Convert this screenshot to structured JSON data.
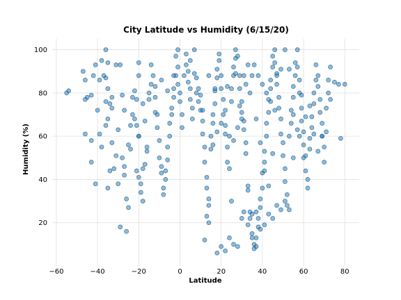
{
  "chart_data": {
    "type": "scatter",
    "title": "City Latitude vs Humidity (6/15/20)",
    "xlabel": "Latitude",
    "ylabel": "Humidity (%)",
    "xlim": [
      -62,
      87
    ],
    "ylim": [
      0,
      105
    ],
    "xticks": [
      -60,
      -40,
      -20,
      0,
      20,
      40,
      60,
      80
    ],
    "yticks": [
      20,
      40,
      60,
      80,
      100
    ],
    "grid": true,
    "marker_color": "#1f77b4",
    "points": [
      [
        -55,
        80
      ],
      [
        -54,
        81
      ],
      [
        -47,
        90
      ],
      [
        -46,
        86
      ],
      [
        -45,
        78
      ],
      [
        -46,
        77
      ],
      [
        -43,
        79
      ],
      [
        -46,
        61
      ],
      [
        -43,
        58
      ],
      [
        -41,
        38
      ],
      [
        -43,
        48
      ],
      [
        -42,
        88
      ],
      [
        -41,
        93
      ],
      [
        -40,
        72
      ],
      [
        -39,
        86
      ],
      [
        -38,
        95
      ],
      [
        -39,
        61
      ],
      [
        -38,
        55
      ],
      [
        -36,
        100
      ],
      [
        -35,
        94
      ],
      [
        -36,
        87
      ],
      [
        -37,
        88
      ],
      [
        -35,
        82
      ],
      [
        -36,
        76
      ],
      [
        -35,
        68
      ],
      [
        -36,
        65
      ],
      [
        -33,
        57
      ],
      [
        -34,
        44
      ],
      [
        -35,
        36
      ],
      [
        -32,
        45
      ],
      [
        -31,
        51
      ],
      [
        -30,
        63
      ],
      [
        -30,
        38
      ],
      [
        -33,
        78
      ],
      [
        -34,
        75
      ],
      [
        -33,
        73
      ],
      [
        -31,
        93
      ],
      [
        -29,
        93
      ],
      [
        -28,
        79
      ],
      [
        -27,
        72
      ],
      [
        -28,
        50
      ],
      [
        -27,
        46
      ],
      [
        -26,
        31
      ],
      [
        -25,
        27
      ],
      [
        -25,
        56
      ],
      [
        -24,
        54
      ],
      [
        -23,
        70
      ],
      [
        -22,
        68
      ],
      [
        -23,
        78
      ],
      [
        -22,
        81
      ],
      [
        -21,
        77
      ],
      [
        -20,
        88
      ],
      [
        -20,
        94
      ],
      [
        -21,
        65
      ],
      [
        -20,
        60
      ],
      [
        -21,
        44
      ],
      [
        -20,
        41
      ],
      [
        -19,
        38
      ],
      [
        -19,
        34
      ],
      [
        -18,
        30
      ],
      [
        -18,
        45
      ],
      [
        -17,
        47
      ],
      [
        -16,
        55
      ],
      [
        -16,
        53
      ],
      [
        -17,
        67
      ],
      [
        -15,
        77
      ],
      [
        -15,
        80
      ],
      [
        -14,
        84
      ],
      [
        -14,
        93
      ],
      [
        -13,
        88
      ],
      [
        -12,
        83
      ],
      [
        -12,
        78
      ],
      [
        -11,
        70
      ],
      [
        -11,
        64
      ],
      [
        -10,
        58
      ],
      [
        -10,
        50
      ],
      [
        -9,
        46
      ],
      [
        -9,
        43
      ],
      [
        -8,
        36
      ],
      [
        -8,
        33
      ],
      [
        -7,
        40
      ],
      [
        -7,
        44
      ],
      [
        -6,
        49
      ],
      [
        -6,
        55
      ],
      [
        -5,
        60
      ],
      [
        -5,
        66
      ],
      [
        -4,
        70
      ],
      [
        -4,
        73
      ],
      [
        -3,
        78
      ],
      [
        -3,
        82
      ],
      [
        -2,
        88
      ],
      [
        -2,
        97
      ],
      [
        -1,
        92
      ],
      [
        -1,
        84
      ],
      [
        0,
        80
      ],
      [
        0,
        76
      ],
      [
        1,
        70
      ],
      [
        1,
        64
      ],
      [
        2,
        88
      ],
      [
        3,
        98
      ],
      [
        3,
        93
      ],
      [
        4,
        90
      ],
      [
        4,
        85
      ],
      [
        5,
        82
      ],
      [
        5,
        77
      ],
      [
        6,
        73
      ],
      [
        6,
        68
      ],
      [
        7,
        89
      ],
      [
        7,
        100
      ],
      [
        8,
        87
      ],
      [
        9,
        82
      ],
      [
        9,
        76
      ],
      [
        10,
        79
      ],
      [
        10,
        72
      ],
      [
        11,
        67
      ],
      [
        11,
        61
      ],
      [
        12,
        55
      ],
      [
        12,
        48
      ],
      [
        13,
        41
      ],
      [
        13,
        36
      ],
      [
        14,
        31
      ],
      [
        14,
        28
      ],
      [
        15,
        54
      ],
      [
        15,
        60
      ],
      [
        16,
        66
      ],
      [
        16,
        70
      ],
      [
        17,
        75
      ],
      [
        17,
        81
      ],
      [
        18,
        87
      ],
      [
        18,
        91
      ],
      [
        19,
        95
      ],
      [
        19,
        98
      ],
      [
        20,
        88
      ],
      [
        20,
        82
      ],
      [
        21,
        77
      ],
      [
        21,
        70
      ],
      [
        22,
        65
      ],
      [
        22,
        61
      ],
      [
        23,
        55
      ],
      [
        23,
        48
      ],
      [
        24,
        45
      ],
      [
        25,
        30
      ],
      [
        25,
        82
      ],
      [
        26,
        88
      ],
      [
        26,
        92
      ],
      [
        27,
        96
      ],
      [
        27,
        100
      ],
      [
        28,
        97
      ],
      [
        29,
        88
      ],
      [
        29,
        82
      ],
      [
        30,
        76
      ],
      [
        30,
        71
      ],
      [
        31,
        67
      ],
      [
        31,
        63
      ],
      [
        32,
        57
      ],
      [
        32,
        52
      ],
      [
        33,
        37
      ],
      [
        33,
        35
      ],
      [
        34,
        25
      ],
      [
        34,
        22
      ],
      [
        35,
        15
      ],
      [
        35,
        13
      ],
      [
        36,
        10
      ],
      [
        36,
        8
      ],
      [
        37,
        9
      ],
      [
        37,
        13
      ],
      [
        38,
        18
      ],
      [
        38,
        22
      ],
      [
        39,
        27
      ],
      [
        39,
        31
      ],
      [
        40,
        36
      ],
      [
        40,
        43
      ],
      [
        41,
        48
      ],
      [
        41,
        53
      ],
      [
        42,
        60
      ],
      [
        42,
        66
      ],
      [
        43,
        71
      ],
      [
        43,
        77
      ],
      [
        44,
        82
      ],
      [
        44,
        86
      ],
      [
        45,
        92
      ],
      [
        45,
        97
      ],
      [
        46,
        100
      ],
      [
        46,
        94
      ],
      [
        47,
        89
      ],
      [
        47,
        84
      ],
      [
        48,
        78
      ],
      [
        48,
        73
      ],
      [
        49,
        68
      ],
      [
        49,
        61
      ],
      [
        50,
        57
      ],
      [
        50,
        51
      ],
      [
        51,
        45
      ],
      [
        51,
        39
      ],
      [
        52,
        33
      ],
      [
        52,
        28
      ],
      [
        53,
        26
      ],
      [
        53,
        60
      ],
      [
        54,
        66
      ],
      [
        54,
        72
      ],
      [
        55,
        78
      ],
      [
        55,
        83
      ],
      [
        56,
        88
      ],
      [
        56,
        94
      ],
      [
        57,
        100
      ],
      [
        57,
        92
      ],
      [
        58,
        86
      ],
      [
        58,
        80
      ],
      [
        59,
        73
      ],
      [
        59,
        67
      ],
      [
        60,
        62
      ],
      [
        60,
        56
      ],
      [
        61,
        51
      ],
      [
        61,
        44
      ],
      [
        62,
        40
      ],
      [
        62,
        36
      ],
      [
        63,
        54
      ],
      [
        63,
        59
      ],
      [
        64,
        64
      ],
      [
        64,
        69
      ],
      [
        65,
        75
      ],
      [
        65,
        80
      ],
      [
        66,
        86
      ],
      [
        66,
        93
      ],
      [
        67,
        88
      ],
      [
        67,
        83
      ],
      [
        68,
        77
      ],
      [
        68,
        71
      ],
      [
        69,
        66
      ],
      [
        69,
        60
      ],
      [
        70,
        55
      ],
      [
        70,
        48
      ],
      [
        71,
        62
      ],
      [
        71,
        73
      ],
      [
        72,
        80
      ],
      [
        72,
        86
      ],
      [
        73,
        92
      ],
      [
        73,
        77
      ],
      [
        75,
        85
      ],
      [
        77,
        84
      ],
      [
        78,
        59
      ],
      [
        80,
        84
      ],
      [
        36,
        93
      ],
      [
        38,
        88
      ],
      [
        40,
        84
      ],
      [
        42,
        80
      ],
      [
        44,
        76
      ],
      [
        46,
        72
      ],
      [
        34,
        80
      ],
      [
        32,
        84
      ],
      [
        30,
        68
      ],
      [
        28,
        64
      ],
      [
        26,
        58
      ],
      [
        24,
        60
      ],
      [
        22,
        72
      ],
      [
        20,
        66
      ],
      [
        18,
        62
      ],
      [
        16,
        56
      ],
      [
        14,
        20
      ],
      [
        13,
        23
      ],
      [
        12,
        12
      ],
      [
        18,
        6
      ],
      [
        20,
        9
      ],
      [
        22,
        7
      ],
      [
        24,
        13
      ],
      [
        26,
        10
      ],
      [
        28,
        9
      ],
      [
        30,
        22
      ],
      [
        31,
        25
      ],
      [
        33,
        19
      ],
      [
        35,
        24
      ],
      [
        37,
        25
      ],
      [
        39,
        17
      ],
      [
        41,
        19
      ],
      [
        43,
        24
      ],
      [
        45,
        22
      ],
      [
        47,
        28
      ],
      [
        49,
        26
      ],
      [
        51,
        30
      ],
      [
        55,
        50
      ],
      [
        58,
        60
      ],
      [
        60,
        50
      ],
      [
        -26,
        16
      ],
      [
        -29,
        18
      ],
      [
        -27,
        42
      ],
      [
        -24,
        65
      ],
      [
        -20,
        60
      ],
      [
        -18,
        75
      ],
      [
        -12,
        71
      ],
      [
        -9,
        86
      ],
      [
        -6,
        81
      ],
      [
        -3,
        88
      ],
      [
        -1,
        100
      ],
      [
        5,
        95
      ],
      [
        8,
        80
      ],
      [
        11,
        72
      ],
      [
        14,
        88
      ],
      [
        17,
        82
      ],
      [
        23,
        83
      ],
      [
        25,
        76
      ],
      [
        27,
        89
      ],
      [
        29,
        74
      ],
      [
        31,
        88
      ],
      [
        33,
        93
      ],
      [
        35,
        88
      ],
      [
        37,
        68
      ],
      [
        39,
        57
      ],
      [
        41,
        44
      ],
      [
        43,
        37
      ],
      [
        45,
        52
      ],
      [
        47,
        88
      ],
      [
        49,
        91
      ],
      [
        51,
        100
      ],
      [
        53,
        91
      ],
      [
        55,
        70
      ],
      [
        57,
        63
      ],
      [
        59,
        79
      ],
      [
        61,
        69
      ],
      [
        63,
        74
      ],
      [
        65,
        61
      ],
      [
        67,
        53
      ],
      [
        69,
        60
      ]
    ]
  }
}
